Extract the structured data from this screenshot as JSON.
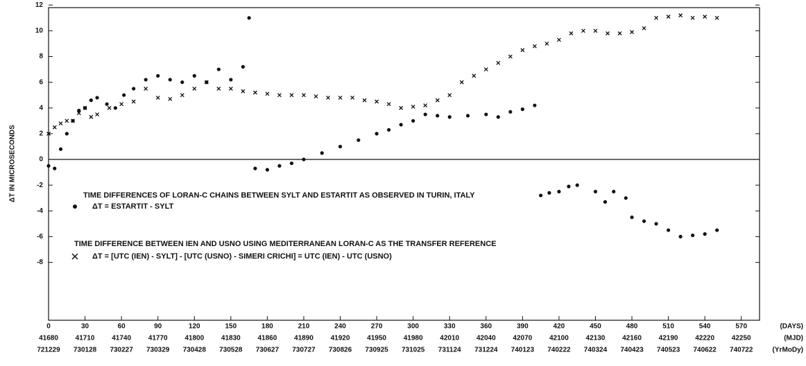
{
  "chart_data": {
    "type": "scatter",
    "ylabel": "ΔT IN MICROSECONDS",
    "annotations": [
      "TIME DIFFERENCES OF LORAN-C CHAINS BETWEEN SYLT AND ESTARTIT AS OBSERVED IN TURIN, ITALY",
      "TIME DIFFERENCE BETWEEN IEN AND USNO USING MEDITERRANEAN LORAN-C AS THE TRANSFER REFERENCE"
    ],
    "xlim": [
      0,
      585
    ],
    "ylim": [
      -12.5,
      11.8
    ],
    "xticks": [
      0,
      30,
      60,
      90,
      120,
      150,
      180,
      210,
      240,
      270,
      300,
      330,
      360,
      390,
      420,
      450,
      480,
      510,
      540,
      570
    ],
    "x_unit_labels": [
      "(DAYS)",
      "(MJD)",
      "(YrMoDy)"
    ],
    "mjd_labels": [
      41680,
      41710,
      41740,
      41770,
      41800,
      41830,
      41860,
      41890,
      41920,
      41950,
      41980,
      42010,
      42040,
      42070,
      42100,
      42130,
      42160,
      42190,
      42220,
      42250
    ],
    "date_labels": [
      "721229",
      "730128",
      "730227",
      "730329",
      "730428",
      "730528",
      "730627",
      "730727",
      "730826",
      "730925",
      "731025",
      "731124",
      "731224",
      "740123",
      "740222",
      "740324",
      "740423",
      "740523",
      "740622",
      "740722"
    ],
    "yticks": [
      -8,
      -6,
      -4,
      -2,
      0,
      2,
      4,
      6,
      8,
      10,
      12
    ],
    "grid": false,
    "series": [
      {
        "name": "ΔT = ESTARTIT - SYLT",
        "marker": "dot",
        "color": "#111111",
        "x": [
          0,
          5,
          10,
          15,
          20,
          25,
          30,
          35,
          40,
          48,
          55,
          62,
          70,
          80,
          90,
          100,
          110,
          120,
          130,
          140,
          150,
          160,
          165,
          170,
          180,
          190,
          200,
          210,
          225,
          240,
          255,
          270,
          280,
          290,
          300,
          310,
          320,
          330,
          345,
          360,
          370,
          380,
          390,
          400,
          405,
          412,
          420,
          428,
          435,
          450,
          458,
          465,
          475,
          480,
          490,
          500,
          510,
          520,
          530,
          540,
          550
        ],
        "values": [
          -0.5,
          -0.7,
          0.8,
          2,
          3,
          3.8,
          4,
          4.6,
          4.8,
          4.3,
          4,
          5,
          5.5,
          6.2,
          6.5,
          6.2,
          6,
          6.5,
          6,
          7,
          6.2,
          7.2,
          11,
          -0.7,
          -0.8,
          -0.5,
          -0.3,
          0,
          0.5,
          1,
          1.5,
          2,
          2.3,
          2.7,
          3,
          3.5,
          3.4,
          3.3,
          3.4,
          3.5,
          3.3,
          3.7,
          3.9,
          4.2,
          -2.8,
          -2.6,
          -2.5,
          -2.1,
          -2,
          -2.5,
          -3.3,
          -2.5,
          -3,
          -4.5,
          -4.8,
          -5,
          -5.5,
          -6,
          -5.9,
          -5.8,
          -5.5
        ]
      },
      {
        "name": "ΔT = [UTC (IEN) - SYLT] - [UTC (USNO) - SIMERI CRICHI] = UTC (IEN) - UTC (USNO)",
        "marker": "cross",
        "color": "#111111",
        "x": [
          0,
          5,
          10,
          15,
          20,
          25,
          30,
          35,
          40,
          50,
          60,
          70,
          80,
          90,
          100,
          110,
          120,
          130,
          140,
          150,
          160,
          170,
          180,
          190,
          200,
          210,
          220,
          230,
          240,
          250,
          260,
          270,
          280,
          290,
          300,
          310,
          320,
          330,
          340,
          350,
          360,
          370,
          380,
          390,
          400,
          410,
          420,
          430,
          440,
          450,
          460,
          470,
          480,
          490,
          500,
          510,
          520,
          530,
          540,
          550
        ],
        "values": [
          2,
          2.5,
          2.8,
          3,
          3,
          3.6,
          4,
          3.3,
          3.5,
          4,
          4.3,
          4.5,
          5.5,
          4.8,
          4.7,
          5,
          5.5,
          6,
          5.5,
          5.5,
          5.3,
          5.2,
          5.1,
          5,
          5,
          5,
          4.9,
          4.8,
          4.8,
          4.8,
          4.6,
          4.5,
          4.3,
          4,
          4.1,
          4.2,
          4.6,
          5,
          6,
          6.5,
          7,
          7.5,
          8,
          8.5,
          8.8,
          9,
          9.3,
          9.8,
          10,
          10,
          9.8,
          9.8,
          9.9,
          10.2,
          11,
          11.1,
          11.2,
          11,
          11.1,
          11
        ]
      }
    ]
  }
}
